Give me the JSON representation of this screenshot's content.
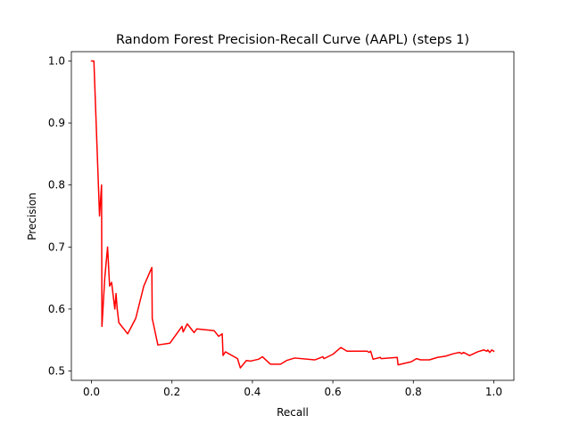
{
  "chart_data": {
    "type": "line",
    "title": "Random Forest Precision-Recall Curve (AAPL) (steps 1)",
    "xlabel": "Recall",
    "ylabel": "Precision",
    "xlim": [
      -0.05,
      1.05
    ],
    "ylim": [
      0.485,
      1.015
    ],
    "x_ticks": [
      0.0,
      0.2,
      0.4,
      0.6,
      0.8,
      1.0
    ],
    "x_tick_labels": [
      "0.0",
      "0.2",
      "0.4",
      "0.6",
      "0.8",
      "1.0"
    ],
    "y_ticks": [
      0.5,
      0.6,
      0.7,
      0.8,
      0.9,
      1.0
    ],
    "y_tick_labels": [
      "0.5",
      "0.6",
      "0.7",
      "0.8",
      "0.9",
      "1.0"
    ],
    "grid": false,
    "legend": "none",
    "series": [
      {
        "color": "#ff0000",
        "x": [
          0.0,
          0.006,
          0.02,
          0.025,
          0.026,
          0.033,
          0.04,
          0.045,
          0.05,
          0.058,
          0.061,
          0.064,
          0.068,
          0.09,
          0.11,
          0.13,
          0.15,
          0.151,
          0.165,
          0.195,
          0.225,
          0.228,
          0.238,
          0.255,
          0.262,
          0.305,
          0.316,
          0.325,
          0.327,
          0.333,
          0.363,
          0.37,
          0.385,
          0.395,
          0.415,
          0.425,
          0.445,
          0.47,
          0.485,
          0.505,
          0.555,
          0.575,
          0.578,
          0.6,
          0.62,
          0.635,
          0.685,
          0.69,
          0.694,
          0.7,
          0.718,
          0.72,
          0.76,
          0.762,
          0.795,
          0.808,
          0.818,
          0.84,
          0.86,
          0.88,
          0.9,
          0.915,
          0.92,
          0.925,
          0.94,
          0.95,
          0.96,
          0.975,
          0.983,
          0.985,
          0.99,
          0.995,
          1.0
        ],
        "y": [
          1.0,
          1.0,
          0.75,
          0.8,
          0.572,
          0.65,
          0.7,
          0.637,
          0.643,
          0.6,
          0.625,
          0.6,
          0.578,
          0.56,
          0.585,
          0.637,
          0.667,
          0.585,
          0.542,
          0.545,
          0.572,
          0.563,
          0.576,
          0.562,
          0.568,
          0.565,
          0.556,
          0.56,
          0.525,
          0.531,
          0.52,
          0.505,
          0.517,
          0.516,
          0.519,
          0.523,
          0.511,
          0.511,
          0.517,
          0.521,
          0.518,
          0.523,
          0.52,
          0.527,
          0.538,
          0.532,
          0.532,
          0.53,
          0.532,
          0.519,
          0.522,
          0.52,
          0.522,
          0.51,
          0.515,
          0.52,
          0.518,
          0.518,
          0.522,
          0.524,
          0.528,
          0.53,
          0.528,
          0.53,
          0.525,
          0.528,
          0.531,
          0.534,
          0.532,
          0.534,
          0.53,
          0.534,
          0.532
        ]
      }
    ]
  }
}
